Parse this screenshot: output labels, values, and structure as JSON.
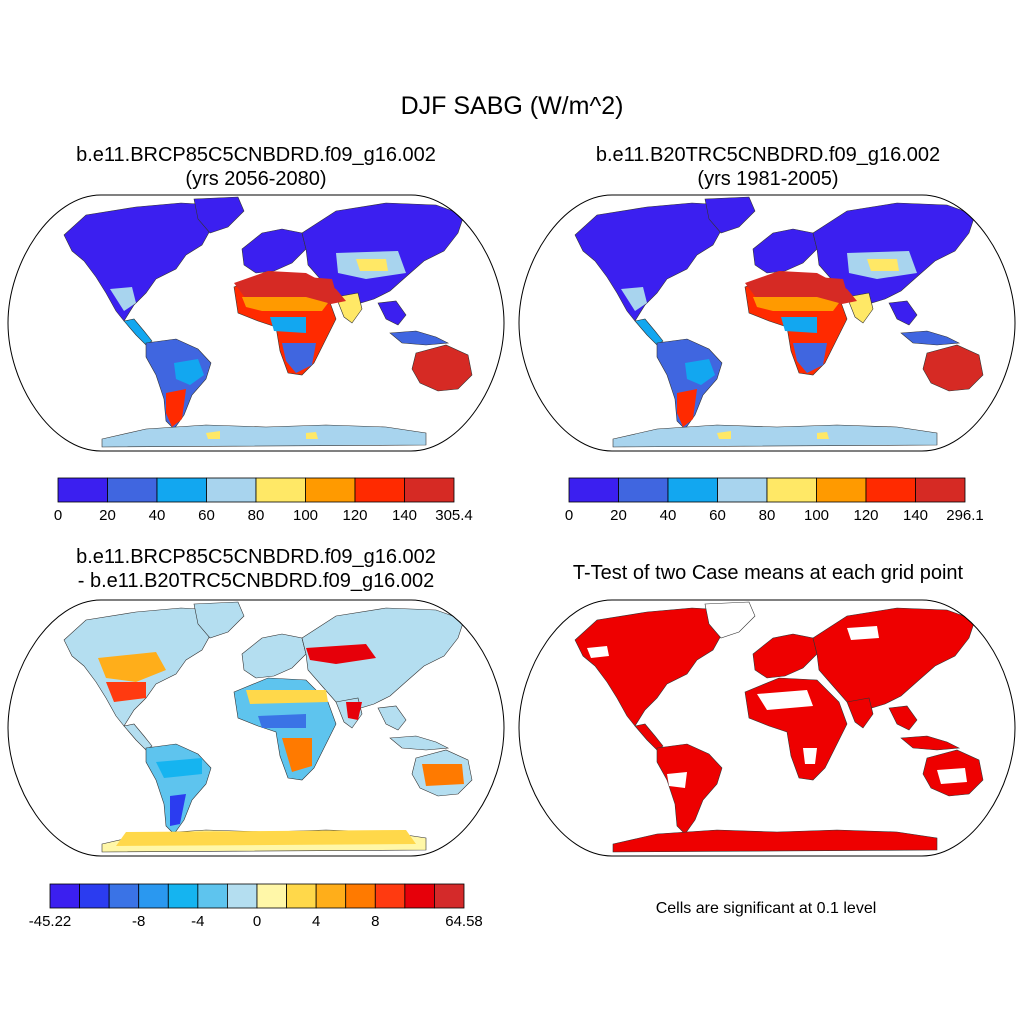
{
  "figure": {
    "title": "DJF SABG (W/m^2)"
  },
  "panels": [
    {
      "id": "future",
      "title_line1": "b.e11.BRCP85C5CNBDRD.f09_g16.002",
      "title_line2": "(yrs 2056-2080)",
      "colorbar": {
        "colors": [
          "#3b1ff0",
          "#4066e0",
          "#12a7f0",
          "#a8d4ee",
          "#ffe866",
          "#ff9a00",
          "#ff2a00",
          "#d62a24"
        ],
        "labels": [
          "0",
          "20",
          "40",
          "60",
          "80",
          "100",
          "120",
          "140",
          "305.4"
        ]
      }
    },
    {
      "id": "historical",
      "title_line1": "b.e11.B20TRC5CNBDRD.f09_g16.002",
      "title_line2": "(yrs 1981-2005)",
      "colorbar": {
        "colors": [
          "#3b1ff0",
          "#4066e0",
          "#12a7f0",
          "#a8d4ee",
          "#ffe866",
          "#ff9a00",
          "#ff2a00",
          "#d62a24"
        ],
        "labels": [
          "0",
          "20",
          "40",
          "60",
          "80",
          "100",
          "120",
          "140",
          "296.1"
        ]
      }
    },
    {
      "id": "difference",
      "title_line1": "b.e11.BRCP85C5CNBDRD.f09_g16.002",
      "title_line2": "- b.e11.B20TRC5CNBDRD.f09_g16.002",
      "colorbar": {
        "colors": [
          "#3b1ff0",
          "#2b3cf0",
          "#3a73e6",
          "#2a98f0",
          "#15b4f0",
          "#5ec4ee",
          "#b4def0",
          "#fff7a8",
          "#ffd84a",
          "#ffae1a",
          "#ff7a00",
          "#ff3a10",
          "#e6000a",
          "#d42a2a"
        ],
        "labels": [
          "-45.22",
          "-8",
          "-4",
          "0",
          "4",
          "8",
          "64.58"
        ]
      }
    },
    {
      "id": "ttest",
      "title_line1": "T-Test of two Case means at each grid point",
      "note": "Cells are significant at 0.1 level",
      "significant_color": "#ee0000"
    }
  ]
}
